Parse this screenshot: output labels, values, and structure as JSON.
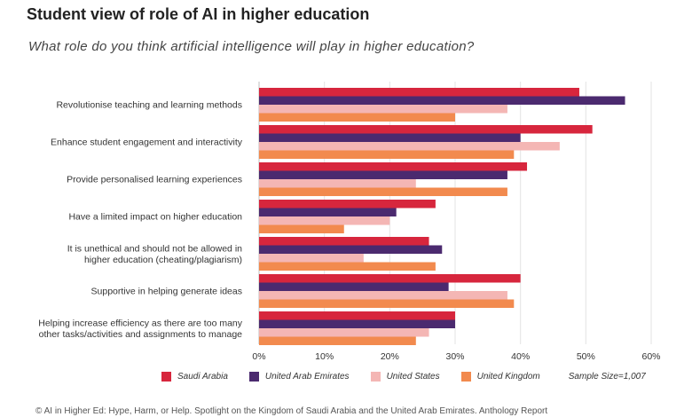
{
  "header": {
    "title": "Student view of role of AI in higher education",
    "subtitle": "What role do you think artificial intelligence will play in higher education?"
  },
  "legend": {
    "sample_size": "Sample Size=1,007"
  },
  "footer": {
    "text": "© AI in Higher Ed: Hype, Harm, or Help. Spotlight on the Kingdom of Saudi Arabia and the United Arab Emirates. Anthology Report"
  },
  "chart_data": {
    "type": "bar",
    "orientation": "horizontal",
    "categories": [
      [
        "Revolutionise teaching and learning methods"
      ],
      [
        "Enhance student engagement and interactivity"
      ],
      [
        "Provide personalised learning experiences"
      ],
      [
        "Have a limited impact on higher education"
      ],
      [
        "It is unethical and should not be allowed in",
        "higher education (cheating/plagiarism)"
      ],
      [
        "Supportive in helping generate ideas"
      ],
      [
        "Helping increase efficiency as there are too many",
        "other tasks/activities and assignments to manage"
      ]
    ],
    "series": [
      {
        "name": "Saudi Arabia",
        "color": "#d7263d",
        "values": [
          49,
          51,
          41,
          27,
          26,
          40,
          30
        ]
      },
      {
        "name": "United Arab Emirates",
        "color": "#4b2a6f",
        "values": [
          56,
          40,
          38,
          21,
          28,
          29,
          30
        ]
      },
      {
        "name": "United States",
        "color": "#f4b6b4",
        "values": [
          38,
          46,
          24,
          20,
          16,
          38,
          26
        ]
      },
      {
        "name": "United Kingdom",
        "color": "#f28a4e",
        "values": [
          30,
          39,
          38,
          13,
          27,
          39,
          24
        ]
      }
    ],
    "xticks": [
      "0%",
      "10%",
      "20%",
      "30%",
      "40%",
      "50%",
      "60%"
    ],
    "xlim": [
      0,
      60
    ],
    "grid": true,
    "legend_position": "bottom"
  }
}
